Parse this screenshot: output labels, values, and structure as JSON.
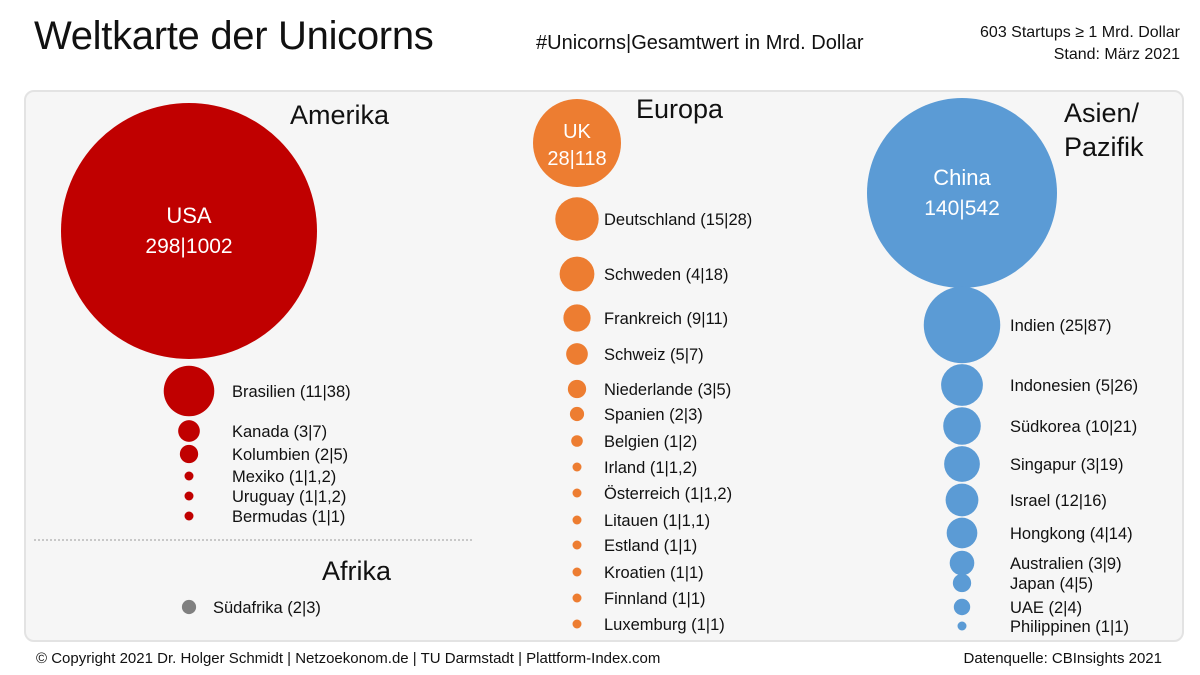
{
  "header": {
    "title": "Weltkarte der Unicorns",
    "subtitle": "#Unicorns|Gesamtwert in Mrd. Dollar",
    "meta_line1": "603 Startups ≥ 1 Mrd. Dollar",
    "meta_line2": "Stand: März 2021"
  },
  "footer": {
    "copyright": "© Copyright 2021 Dr. Holger Schmidt | Netzoekonom.de | TU Darmstadt | Plattform-Index.com",
    "source": "Datenquelle: CBInsights 2021"
  },
  "colors": {
    "amerika": "#c00000",
    "europa": "#ed7d31",
    "asien": "#5b9bd5",
    "afrika": "#808080"
  },
  "chart_data": {
    "type": "bubble",
    "size_encodes": "Gesamtwert in Mrd. Dollar",
    "regions": [
      {
        "name": "Amerika",
        "items": [
          {
            "country": "USA",
            "count": 298,
            "value": 1002,
            "label": "USA",
            "value_label": "298|1002"
          },
          {
            "country": "Brasilien",
            "count": 11,
            "value": 38,
            "label": "Brasilien (11|38)"
          },
          {
            "country": "Kanada",
            "count": 3,
            "value": 7,
            "label": "Kanada (3|7)"
          },
          {
            "country": "Kolumbien",
            "count": 2,
            "value": 5,
            "label": "Kolumbien (2|5)"
          },
          {
            "country": "Mexiko",
            "count": 1,
            "value": 1.2,
            "label": "Mexiko (1|1,2)"
          },
          {
            "country": "Uruguay",
            "count": 1,
            "value": 1.2,
            "label": "Uruguay (1|1,2)"
          },
          {
            "country": "Bermudas",
            "count": 1,
            "value": 1,
            "label": "Bermudas (1|1)"
          }
        ]
      },
      {
        "name": "Afrika",
        "items": [
          {
            "country": "Südafrika",
            "count": 2,
            "value": 3,
            "label": "Südafrika (2|3)"
          }
        ]
      },
      {
        "name": "Europa",
        "items": [
          {
            "country": "UK",
            "count": 28,
            "value": 118,
            "label": "UK",
            "value_label": "28|118"
          },
          {
            "country": "Deutschland",
            "count": 15,
            "value": 28,
            "label": "Deutschland (15|28)"
          },
          {
            "country": "Schweden",
            "count": 4,
            "value": 18,
            "label": "Schweden (4|18)"
          },
          {
            "country": "Frankreich",
            "count": 9,
            "value": 11,
            "label": "Frankreich (9|11)"
          },
          {
            "country": "Schweiz",
            "count": 5,
            "value": 7,
            "label": "Schweiz (5|7)"
          },
          {
            "country": "Niederlande",
            "count": 3,
            "value": 5,
            "label": "Niederlande (3|5)"
          },
          {
            "country": "Spanien",
            "count": 2,
            "value": 3,
            "label": "Spanien (2|3)"
          },
          {
            "country": "Belgien",
            "count": 1,
            "value": 2,
            "label": "Belgien (1|2)"
          },
          {
            "country": "Irland",
            "count": 1,
            "value": 1.2,
            "label": "Irland (1|1,2)"
          },
          {
            "country": "Österreich",
            "count": 1,
            "value": 1.2,
            "label": "Österreich (1|1,2)"
          },
          {
            "country": "Litauen",
            "count": 1,
            "value": 1.1,
            "label": "Litauen (1|1,1)"
          },
          {
            "country": "Estland",
            "count": 1,
            "value": 1,
            "label": "Estland (1|1)"
          },
          {
            "country": "Kroatien",
            "count": 1,
            "value": 1,
            "label": "Kroatien (1|1)"
          },
          {
            "country": "Finnland",
            "count": 1,
            "value": 1,
            "label": "Finnland (1|1)"
          },
          {
            "country": "Luxemburg",
            "count": 1,
            "value": 1,
            "label": "Luxemburg (1|1)"
          }
        ]
      },
      {
        "name": "Asien/ Pazifik",
        "name_line1": "Asien/",
        "name_line2": "Pazifik",
        "items": [
          {
            "country": "China",
            "count": 140,
            "value": 542,
            "label": "China",
            "value_label": "140|542"
          },
          {
            "country": "Indien",
            "count": 25,
            "value": 87,
            "label": "Indien (25|87)"
          },
          {
            "country": "Indonesien",
            "count": 5,
            "value": 26,
            "label": "Indonesien (5|26)"
          },
          {
            "country": "Südkorea",
            "count": 10,
            "value": 21,
            "label": "Südkorea (10|21)"
          },
          {
            "country": "Singapur",
            "count": 3,
            "value": 19,
            "label": "Singapur (3|19)"
          },
          {
            "country": "Israel",
            "count": 12,
            "value": 16,
            "label": "Israel (12|16)"
          },
          {
            "country": "Hongkong",
            "count": 4,
            "value": 14,
            "label": "Hongkong (4|14)"
          },
          {
            "country": "Australien",
            "count": 3,
            "value": 9,
            "label": "Australien (3|9)"
          },
          {
            "country": "Japan",
            "count": 4,
            "value": 5,
            "label": "Japan (4|5)"
          },
          {
            "country": "UAE",
            "count": 2,
            "value": 4,
            "label": "UAE (2|4)"
          },
          {
            "country": "Philippinen",
            "count": 1,
            "value": 1,
            "label": "Philippinen (1|1)"
          }
        ]
      }
    ]
  }
}
